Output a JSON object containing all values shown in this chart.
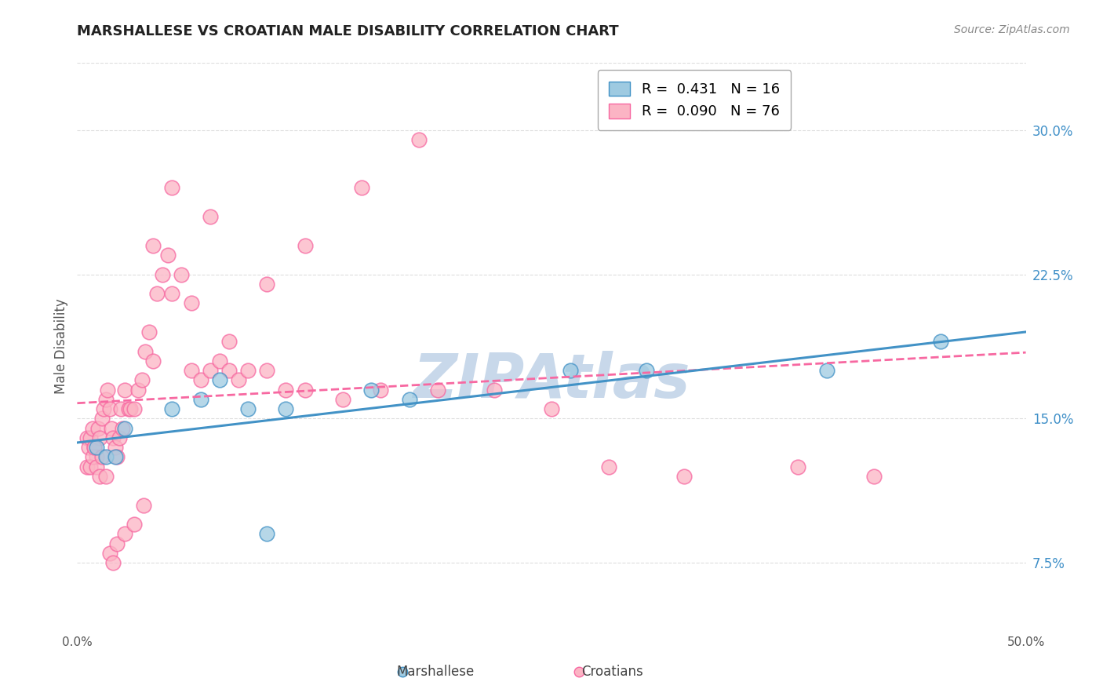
{
  "title": "MARSHALLESE VS CROATIAN MALE DISABILITY CORRELATION CHART",
  "source": "Source: ZipAtlas.com",
  "xlabel": "",
  "ylabel": "Male Disability",
  "xlim": [
    0.0,
    0.5
  ],
  "ylim": [
    0.04,
    0.335
  ],
  "xticks": [
    0.0,
    0.1,
    0.2,
    0.3,
    0.4,
    0.5
  ],
  "xticklabels": [
    "0.0%",
    "",
    "",
    "",
    "",
    "50.0%"
  ],
  "yticks": [
    0.075,
    0.15,
    0.225,
    0.3
  ],
  "yticklabels": [
    "7.5%",
    "15.0%",
    "22.5%",
    "30.0%"
  ],
  "legend_entries": [
    {
      "label": "R =  0.431   N = 16",
      "color": "#aec6e8"
    },
    {
      "label": "R =  0.090   N = 76",
      "color": "#f4b8c8"
    }
  ],
  "marshallese_x": [
    0.01,
    0.015,
    0.02,
    0.025,
    0.05,
    0.065,
    0.075,
    0.09,
    0.1,
    0.11,
    0.155,
    0.175,
    0.26,
    0.3,
    0.395,
    0.455
  ],
  "marshallese_y": [
    0.135,
    0.13,
    0.13,
    0.145,
    0.155,
    0.16,
    0.17,
    0.155,
    0.09,
    0.155,
    0.165,
    0.16,
    0.175,
    0.175,
    0.175,
    0.19
  ],
  "croatians_x": [
    0.005,
    0.006,
    0.007,
    0.008,
    0.009,
    0.01,
    0.011,
    0.012,
    0.013,
    0.014,
    0.015,
    0.016,
    0.017,
    0.018,
    0.019,
    0.02,
    0.021,
    0.022,
    0.023,
    0.024,
    0.025,
    0.027,
    0.028,
    0.03,
    0.032,
    0.034,
    0.036,
    0.038,
    0.04,
    0.042,
    0.045,
    0.048,
    0.05,
    0.055,
    0.06,
    0.065,
    0.07,
    0.075,
    0.08,
    0.085,
    0.09,
    0.1,
    0.11,
    0.12,
    0.14,
    0.16,
    0.19,
    0.22,
    0.25,
    0.28,
    0.32,
    0.38,
    0.42,
    0.005,
    0.007,
    0.008,
    0.009,
    0.01,
    0.012,
    0.013,
    0.015,
    0.017,
    0.019,
    0.021,
    0.025,
    0.03,
    0.035,
    0.04,
    0.05,
    0.06,
    0.07,
    0.08,
    0.1,
    0.12,
    0.15,
    0.18
  ],
  "croatians_y": [
    0.14,
    0.135,
    0.14,
    0.145,
    0.135,
    0.13,
    0.145,
    0.14,
    0.15,
    0.155,
    0.16,
    0.165,
    0.155,
    0.145,
    0.14,
    0.135,
    0.13,
    0.14,
    0.155,
    0.145,
    0.165,
    0.155,
    0.155,
    0.155,
    0.165,
    0.17,
    0.185,
    0.195,
    0.18,
    0.215,
    0.225,
    0.235,
    0.215,
    0.225,
    0.175,
    0.17,
    0.175,
    0.18,
    0.175,
    0.17,
    0.175,
    0.175,
    0.165,
    0.165,
    0.16,
    0.165,
    0.165,
    0.165,
    0.155,
    0.125,
    0.12,
    0.125,
    0.12,
    0.125,
    0.125,
    0.13,
    0.135,
    0.125,
    0.12,
    0.13,
    0.12,
    0.08,
    0.075,
    0.085,
    0.09,
    0.095,
    0.105,
    0.24,
    0.27,
    0.21,
    0.255,
    0.19,
    0.22,
    0.24,
    0.27,
    0.295
  ],
  "blue_color": "#9ecae1",
  "pink_color": "#fbb4c4",
  "blue_line_color": "#4292c6",
  "pink_line_color": "#f768a1",
  "watermark": "ZIPAtlas",
  "watermark_color": "#c8d8ea",
  "background_color": "#ffffff",
  "grid_color": "#dddddd"
}
